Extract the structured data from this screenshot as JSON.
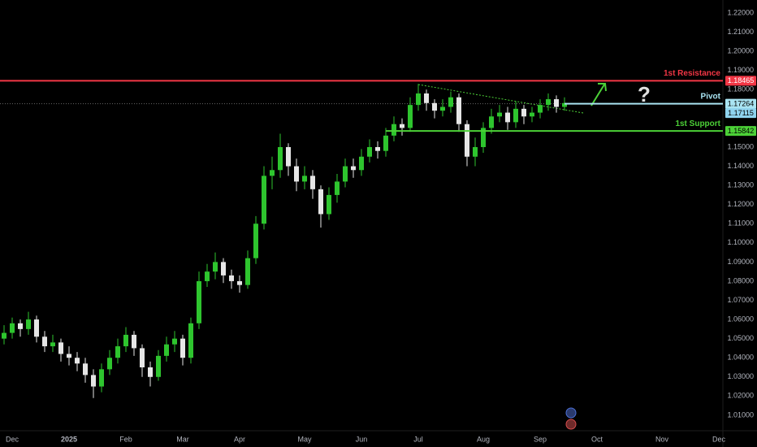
{
  "chart_data": {
    "type": "candlestick",
    "categories": [
      null,
      "Dec",
      null,
      null,
      null,
      null,
      null,
      null,
      "2025",
      null,
      null,
      null,
      null,
      null,
      null,
      "Feb",
      null,
      null,
      null,
      null,
      null,
      null,
      "Mar",
      null,
      null,
      null,
      null,
      null,
      null,
      "Apr",
      null,
      null,
      null,
      null,
      null,
      null,
      null,
      "May",
      null,
      null,
      null,
      null,
      null,
      null,
      "Jun",
      null,
      null,
      null,
      null,
      null,
      null,
      "Jul",
      null,
      null,
      null,
      null,
      null,
      null,
      null,
      "Aug",
      null,
      null,
      null,
      null,
      null,
      null,
      "Sep",
      null,
      null,
      null,
      null,
      null,
      null,
      "Oct",
      null,
      null,
      null,
      null,
      null,
      null,
      null,
      "Nov",
      null,
      null,
      null,
      null,
      null,
      null,
      "Dec"
    ],
    "open": [
      1.05,
      1.053,
      1.058,
      1.055,
      1.06,
      1.051,
      1.046,
      1.048,
      1.042,
      1.04,
      1.037,
      1.031,
      1.025,
      1.034,
      1.04,
      1.046,
      1.052,
      1.045,
      1.035,
      1.03,
      1.041,
      1.047,
      1.05,
      1.04,
      1.058,
      1.08,
      1.085,
      1.09,
      1.083,
      1.08,
      1.078,
      1.092,
      1.11,
      1.135,
      1.138,
      1.15,
      1.14,
      1.132,
      1.135,
      1.128,
      1.115,
      1.125,
      1.132,
      1.14,
      1.138,
      1.145,
      1.15,
      1.148,
      1.156,
      1.162,
      1.16,
      1.172,
      1.178,
      1.173,
      1.169,
      1.171,
      1.176,
      1.162,
      1.145,
      1.15,
      1.16,
      1.166,
      1.168,
      1.163,
      1.17,
      1.166,
      1.168,
      1.172,
      1.175,
      1.171,
      null,
      null,
      null,
      null,
      null,
      null,
      null,
      null,
      null,
      null,
      null,
      null,
      null,
      null,
      null,
      null,
      null,
      null,
      null
    ],
    "high": [
      1.057,
      1.061,
      1.06,
      1.064,
      1.062,
      1.054,
      1.052,
      1.05,
      1.046,
      1.043,
      1.04,
      1.034,
      1.037,
      1.044,
      1.05,
      1.056,
      1.054,
      1.047,
      1.038,
      1.044,
      1.051,
      1.054,
      1.052,
      1.061,
      1.085,
      1.089,
      1.095,
      1.092,
      1.086,
      1.083,
      1.096,
      1.114,
      1.14,
      1.145,
      1.157,
      1.152,
      1.144,
      1.14,
      1.138,
      1.13,
      1.129,
      1.136,
      1.144,
      1.144,
      1.149,
      1.154,
      1.153,
      1.16,
      1.166,
      1.165,
      1.176,
      1.183,
      1.18,
      1.175,
      1.175,
      1.179,
      1.178,
      1.164,
      1.155,
      1.163,
      1.17,
      1.172,
      1.171,
      1.174,
      1.172,
      1.171,
      1.175,
      1.178,
      1.177,
      1.176,
      null,
      null,
      null,
      null,
      null,
      null,
      null,
      null,
      null,
      null,
      null,
      null,
      null,
      null,
      null,
      null,
      null,
      null,
      null
    ],
    "low": [
      1.047,
      1.05,
      1.051,
      1.052,
      1.048,
      1.043,
      1.043,
      1.038,
      1.036,
      1.033,
      1.027,
      1.019,
      1.022,
      1.031,
      1.037,
      1.043,
      1.041,
      1.03,
      1.025,
      1.028,
      1.038,
      1.043,
      1.036,
      1.037,
      1.055,
      1.077,
      1.081,
      1.079,
      1.076,
      1.074,
      1.076,
      1.089,
      1.107,
      1.128,
      1.134,
      1.135,
      1.127,
      1.128,
      1.123,
      1.108,
      1.112,
      1.121,
      1.129,
      1.134,
      1.135,
      1.142,
      1.144,
      1.145,
      1.153,
      1.156,
      1.158,
      1.169,
      1.169,
      1.165,
      1.166,
      1.168,
      1.158,
      1.14,
      1.14,
      1.147,
      1.157,
      1.163,
      1.159,
      1.16,
      1.162,
      1.163,
      1.165,
      1.169,
      1.168,
      1.169,
      null,
      null,
      null,
      null,
      null,
      null,
      null,
      null,
      null,
      null,
      null,
      null,
      null,
      null,
      null,
      null,
      null,
      null,
      null
    ],
    "close": [
      1.053,
      1.058,
      1.055,
      1.06,
      1.051,
      1.046,
      1.048,
      1.042,
      1.04,
      1.037,
      1.031,
      1.025,
      1.034,
      1.04,
      1.046,
      1.052,
      1.045,
      1.035,
      1.03,
      1.041,
      1.047,
      1.05,
      1.04,
      1.058,
      1.08,
      1.085,
      1.09,
      1.083,
      1.08,
      1.078,
      1.092,
      1.11,
      1.135,
      1.138,
      1.15,
      1.14,
      1.132,
      1.135,
      1.128,
      1.115,
      1.125,
      1.132,
      1.14,
      1.138,
      1.145,
      1.15,
      1.148,
      1.156,
      1.162,
      1.16,
      1.172,
      1.178,
      1.173,
      1.169,
      1.171,
      1.176,
      1.162,
      1.145,
      1.15,
      1.16,
      1.166,
      1.168,
      1.163,
      1.17,
      1.166,
      1.168,
      1.172,
      1.175,
      1.171,
      1.173,
      null,
      null,
      null,
      null,
      null,
      null,
      null,
      null,
      null,
      null,
      null,
      null,
      null,
      null,
      null,
      null,
      null,
      null,
      null
    ],
    "up_color": "#2ec52e",
    "down_color": "#e6e6e6",
    "ylim": [
      1.0019,
      1.2268
    ],
    "yticks": [
      {
        "value": 1.22,
        "label": "1.22000"
      },
      {
        "value": 1.21,
        "label": "1.21000"
      },
      {
        "value": 1.2,
        "label": "1.20000"
      },
      {
        "value": 1.19,
        "label": "1.19000"
      },
      {
        "value": 1.18,
        "label": "1.18000"
      },
      {
        "value": 1.15,
        "label": "1.15000"
      },
      {
        "value": 1.14,
        "label": "1.14000"
      },
      {
        "value": 1.13,
        "label": "1.13000"
      },
      {
        "value": 1.12,
        "label": "1.12000"
      },
      {
        "value": 1.11,
        "label": "1.11000"
      },
      {
        "value": 1.1,
        "label": "1.10000"
      },
      {
        "value": 1.09,
        "label": "1.09000"
      },
      {
        "value": 1.08,
        "label": "1.08000"
      },
      {
        "value": 1.07,
        "label": "1.07000"
      },
      {
        "value": 1.06,
        "label": "1.06000"
      },
      {
        "value": 1.05,
        "label": "1.05000"
      },
      {
        "value": 1.04,
        "label": "1.04000"
      },
      {
        "value": 1.03,
        "label": "1.03000"
      },
      {
        "value": 1.02,
        "label": "1.02000"
      },
      {
        "value": 1.01,
        "label": "1.01000"
      }
    ],
    "levels": [
      {
        "name": "1st Resistance",
        "value": 1.18465,
        "color": "#f23645"
      },
      {
        "name": "Pivot",
        "value": 1.17264,
        "color": "#a9e4f2"
      },
      {
        "name": "1st Support",
        "value": 1.15842,
        "color": "#4cd137"
      }
    ],
    "last_price": 1.17115,
    "annotation": "?"
  }
}
